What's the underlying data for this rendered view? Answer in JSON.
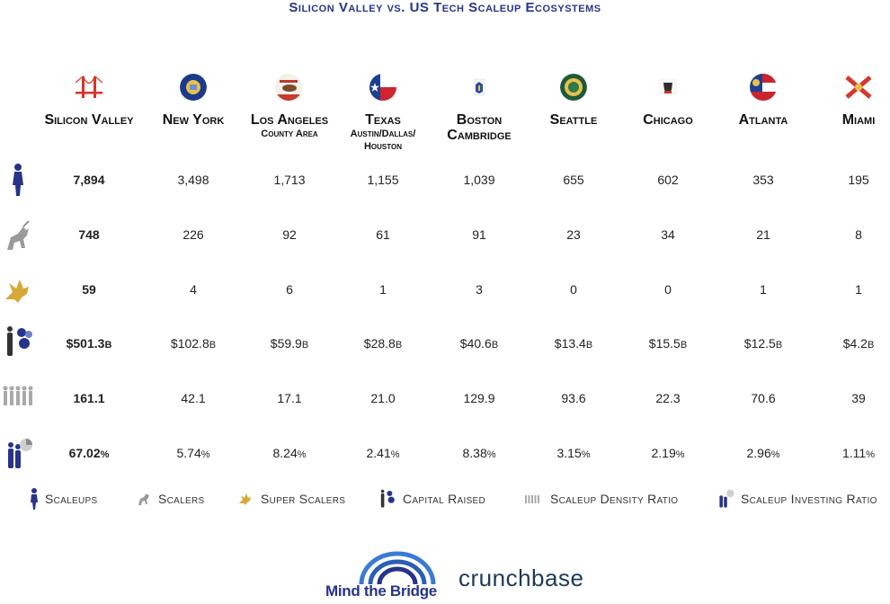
{
  "chart_data": {
    "type": "table",
    "title": "Silicon Valley vs. US Tech Scaleup Ecosystems",
    "columns": [
      {
        "name": "Silicon Valley",
        "sub": "",
        "flag": "golden-gate-bridge"
      },
      {
        "name": "New York",
        "sub": "",
        "flag": "new-york-seal"
      },
      {
        "name": "Los Angeles",
        "sub": "County Area",
        "flag": "california-flag"
      },
      {
        "name": "Texas",
        "sub": "Austin/Dallas/ Houston",
        "flag": "texas-flag"
      },
      {
        "name": "Boston Cambridge",
        "sub": "",
        "flag": "massachusetts-flag"
      },
      {
        "name": "Seattle",
        "sub": "",
        "flag": "washington-flag"
      },
      {
        "name": "Chicago",
        "sub": "",
        "flag": "illinois-flag"
      },
      {
        "name": "Atlanta",
        "sub": "",
        "flag": "georgia-flag"
      },
      {
        "name": "Miami",
        "sub": "",
        "flag": "florida-flag"
      }
    ],
    "rows": [
      {
        "metric": "Scaleups",
        "icon": "scaleup-person-icon",
        "values": [
          "7,894",
          "3,498",
          "1,713",
          "1,155",
          "1,039",
          "655",
          "602",
          "353",
          "195"
        ],
        "suffix": ""
      },
      {
        "metric": "Scalers",
        "icon": "unicorn-icon",
        "values": [
          "748",
          "226",
          "92",
          "61",
          "91",
          "23",
          "34",
          "21",
          "8"
        ],
        "suffix": ""
      },
      {
        "metric": "Super Scalers",
        "icon": "pegasus-icon",
        "values": [
          "59",
          "4",
          "6",
          "1",
          "3",
          "0",
          "0",
          "1",
          "1"
        ],
        "suffix": ""
      },
      {
        "metric": "Capital Raised",
        "icon": "capital-raised-icon",
        "values": [
          "$501.3",
          "$102.8",
          "$59.9",
          "$28.8",
          "$40.6",
          "$13.4",
          "$15.5",
          "$12.5",
          "$4.2"
        ],
        "suffix": "B"
      },
      {
        "metric": "Scaleup Density Ratio",
        "icon": "density-ratio-icon",
        "values": [
          "161.1",
          "42.1",
          "17.1",
          "21.0",
          "129.9",
          "93.6",
          "22.3",
          "70.6",
          "39"
        ],
        "suffix": ""
      },
      {
        "metric": "Scaleup Investing Ratio",
        "icon": "investing-ratio-icon",
        "values": [
          "67.02",
          "5.74",
          "8.24",
          "2.41",
          "8.38",
          "3.15",
          "2.19",
          "2.96",
          "1.11"
        ],
        "suffix": "%"
      }
    ]
  },
  "logos": {
    "mind_the_bridge": "Mind the Bridge",
    "crunchbase": "crunchbase"
  }
}
